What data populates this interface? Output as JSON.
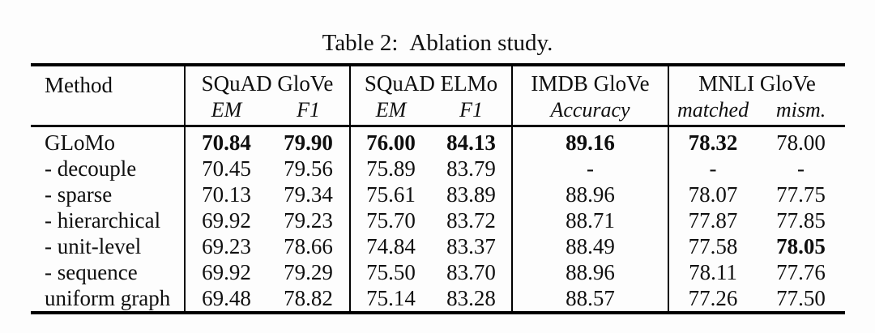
{
  "caption": {
    "label": "Table 2:",
    "text": "Ablation study."
  },
  "table": {
    "method_header": "Method",
    "groups": [
      {
        "label": "SQuAD GloVe",
        "subs": [
          "EM",
          "F1"
        ]
      },
      {
        "label": "SQuAD ELMo",
        "subs": [
          "EM",
          "F1"
        ]
      },
      {
        "label": "IMDB GloVe",
        "subs": [
          "Accuracy"
        ]
      },
      {
        "label": "MNLI GloVe",
        "subs": [
          "matched",
          "mism."
        ]
      }
    ],
    "rows": [
      {
        "method": "GLoMo",
        "values": [
          "70.84",
          "79.90",
          "76.00",
          "84.13",
          "89.16",
          "78.32",
          "78.00"
        ],
        "bold": [
          true,
          true,
          true,
          true,
          true,
          true,
          false
        ]
      },
      {
        "method": "- decouple",
        "values": [
          "70.45",
          "79.56",
          "75.89",
          "83.79",
          "-",
          "-",
          "-"
        ],
        "bold": [
          false,
          false,
          false,
          false,
          false,
          false,
          false
        ]
      },
      {
        "method": "- sparse",
        "values": [
          "70.13",
          "79.34",
          "75.61",
          "83.89",
          "88.96",
          "78.07",
          "77.75"
        ],
        "bold": [
          false,
          false,
          false,
          false,
          false,
          false,
          false
        ]
      },
      {
        "method": "- hierarchical",
        "values": [
          "69.92",
          "79.23",
          "75.70",
          "83.72",
          "88.71",
          "77.87",
          "77.85"
        ],
        "bold": [
          false,
          false,
          false,
          false,
          false,
          false,
          false
        ]
      },
      {
        "method": "- unit-level",
        "values": [
          "69.23",
          "78.66",
          "74.84",
          "83.37",
          "88.49",
          "77.58",
          "78.05"
        ],
        "bold": [
          false,
          false,
          false,
          false,
          false,
          false,
          true
        ]
      },
      {
        "method": "- sequence",
        "values": [
          "69.92",
          "79.29",
          "75.50",
          "83.70",
          "88.96",
          "78.11",
          "77.76"
        ],
        "bold": [
          false,
          false,
          false,
          false,
          false,
          false,
          false
        ]
      },
      {
        "method": "uniform graph",
        "values": [
          "69.48",
          "78.82",
          "75.14",
          "83.28",
          "88.57",
          "77.26",
          "77.50"
        ],
        "bold": [
          false,
          false,
          false,
          false,
          false,
          false,
          false
        ]
      }
    ]
  },
  "colors": {
    "background": "#fdfdfd",
    "text": "#0f0f0f",
    "rule": "#000000"
  }
}
